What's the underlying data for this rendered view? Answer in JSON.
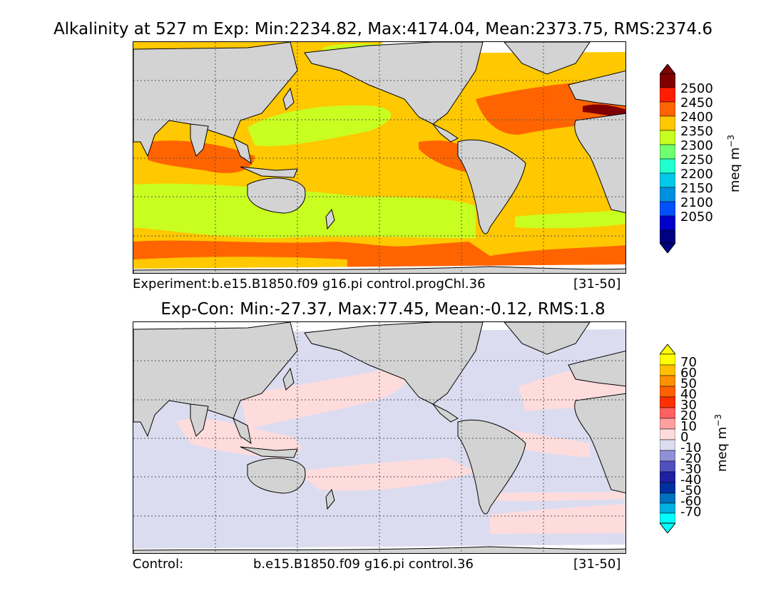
{
  "top_panel": {
    "title": "Alkalinity at 527 m Exp: Min:2234.82, Max:4174.04, Mean:2373.75, RMS:2374.6",
    "caption_left": "Experiment:b.e15.B1850.f09 g16.pi control.progChl.36",
    "caption_right": "[31-50]",
    "colorbar": {
      "labels": [
        "2500",
        "2450",
        "2400",
        "2350",
        "2300",
        "2250",
        "2200",
        "2150",
        "2100",
        "2050"
      ],
      "colors": [
        "#000080",
        "#0000cd",
        "#0050ff",
        "#0090e0",
        "#00c8e8",
        "#20ffd0",
        "#70ff70",
        "#c8ff20",
        "#ffc800",
        "#ff6400",
        "#ff1e00",
        "#800000"
      ],
      "units": "meq m",
      "units_exp": "−3"
    }
  },
  "bottom_panel": {
    "title": "Exp-Con: Min:-27.37, Max:77.45, Mean:-0.12, RMS:1.8",
    "caption_left": "Control:",
    "caption_mid": "b.e15.B1850.f09 g16.pi control.36",
    "caption_right": "[31-50]",
    "colorbar": {
      "labels": [
        "70",
        "60",
        "50",
        "40",
        "30",
        "20",
        "10",
        "0",
        "-10",
        "-20",
        "-30",
        "-40",
        "-50",
        "-60",
        "-70"
      ],
      "colors": [
        "#00ffff",
        "#00b0e0",
        "#0070c0",
        "#0030a0",
        "#2020a0",
        "#5050c0",
        "#9090d8",
        "#dcdcf0",
        "#ffdcdc",
        "#ffa0a0",
        "#ff6060",
        "#ff3000",
        "#ff6000",
        "#ff9000",
        "#ffc000",
        "#ffff00"
      ],
      "units": "meq m",
      "units_exp": "−3"
    }
  }
}
